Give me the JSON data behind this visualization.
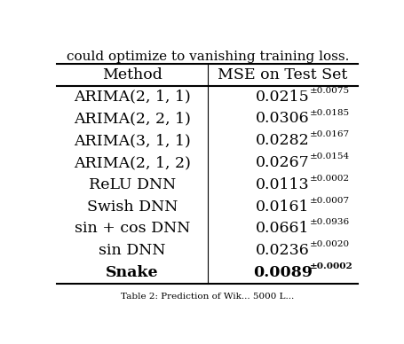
{
  "header": [
    "Method",
    "MSE on Test Set"
  ],
  "rows": [
    [
      "ARIMA(2, 1, 1)",
      "0.0215",
      "0.0075"
    ],
    [
      "ARIMA(2, 2, 1)",
      "0.0306",
      "0.0185"
    ],
    [
      "ARIMA(3, 1, 1)",
      "0.0282",
      "0.0167"
    ],
    [
      "ARIMA(2, 1, 2)",
      "0.0267",
      "0.0154"
    ],
    [
      "ReLU DNN",
      "0.0113",
      "0.0002"
    ],
    [
      "Swish DNN",
      "0.0161",
      "0.0007"
    ],
    [
      "sin + cos DNN",
      "0.0661",
      "0.0936"
    ],
    [
      "sin DNN",
      "0.0236",
      "0.0020"
    ],
    [
      "Snake",
      "0.0089",
      "0.0002"
    ]
  ],
  "bold_last_row": true,
  "top_text": "could optimize to vanishing training loss.",
  "bottom_text": "Table 2: Prediction of Wik... 5000 L...",
  "bg_color": "#ffffff",
  "text_color": "#000000",
  "font_size_main": 12.5,
  "font_size_super": 7.5,
  "col_split": 0.5,
  "figsize": [
    4.56,
    3.88
  ],
  "dpi": 100
}
